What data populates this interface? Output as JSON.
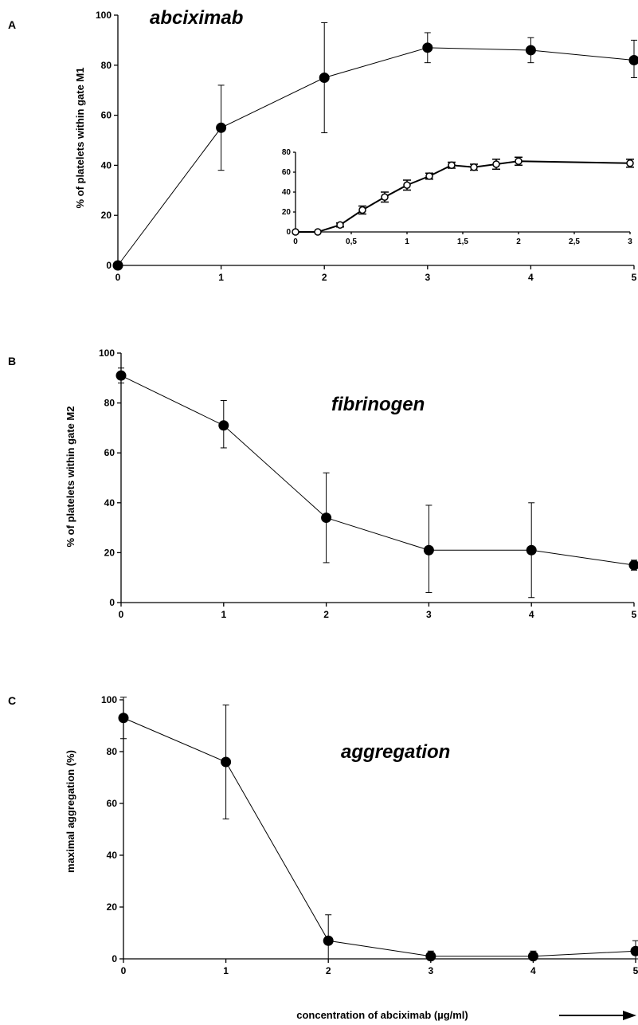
{
  "chart_data": [
    {
      "panel": "A",
      "type": "line",
      "title": "abciximab",
      "ylabel": "% of platelets within gate M1",
      "xlabel": "",
      "xlim": [
        0,
        5
      ],
      "ylim": [
        0,
        100
      ],
      "x_ticks": [
        "0",
        "1",
        "2",
        "3",
        "4",
        "5"
      ],
      "y_ticks": [
        "0",
        "20",
        "40",
        "60",
        "80",
        "100"
      ],
      "marker": "filled-circle",
      "x": [
        0,
        1,
        2,
        3,
        4,
        5
      ],
      "series": [
        {
          "values": [
            0,
            55,
            75,
            87,
            86,
            82
          ],
          "error_low": [
            0,
            38,
            53,
            81,
            81,
            75
          ],
          "error_high": [
            0,
            72,
            97,
            93,
            91,
            90
          ]
        }
      ],
      "inset": {
        "type": "line",
        "xlim": [
          0,
          3
        ],
        "ylim": [
          0,
          80
        ],
        "x_ticks": [
          "0",
          "0,5",
          "1",
          "1,5",
          "2",
          "2,5",
          "3"
        ],
        "y_ticks": [
          "0",
          "20",
          "40",
          "60",
          "80"
        ],
        "marker": "open-circle",
        "x": [
          0,
          0.2,
          0.4,
          0.6,
          0.8,
          1.0,
          1.2,
          1.4,
          1.6,
          1.8,
          2.0,
          3.0
        ],
        "values": [
          0,
          0,
          7,
          22,
          35,
          47,
          56,
          67,
          65,
          68,
          71,
          69
        ],
        "error_low": [
          0,
          0,
          5,
          18,
          30,
          42,
          53,
          64,
          62,
          63,
          67,
          65
        ],
        "error_high": [
          0,
          0,
          9,
          26,
          40,
          52,
          59,
          70,
          68,
          73,
          75,
          73
        ]
      }
    },
    {
      "panel": "B",
      "type": "line",
      "title": "fibrinogen",
      "ylabel": "% of platelets within gate M2",
      "xlabel": "",
      "xlim": [
        0,
        5
      ],
      "ylim": [
        0,
        100
      ],
      "x_ticks": [
        "0",
        "1",
        "2",
        "3",
        "4",
        "5"
      ],
      "y_ticks": [
        "0",
        "20",
        "40",
        "60",
        "80",
        "100"
      ],
      "marker": "filled-circle",
      "x": [
        0,
        1,
        2,
        3,
        4,
        5
      ],
      "series": [
        {
          "values": [
            91,
            71,
            34,
            21,
            21,
            15
          ],
          "error_low": [
            88,
            62,
            16,
            4,
            2,
            13
          ],
          "error_high": [
            94,
            81,
            52,
            39,
            40,
            17
          ]
        }
      ]
    },
    {
      "panel": "C",
      "type": "line",
      "title": "aggregation",
      "ylabel": "maximal aggregation (%)",
      "xlabel": "",
      "xlim": [
        0,
        5
      ],
      "ylim": [
        0,
        100
      ],
      "x_ticks": [
        "0",
        "1",
        "2",
        "3",
        "4",
        "5"
      ],
      "y_ticks": [
        "0",
        "20",
        "40",
        "60",
        "80",
        "100"
      ],
      "marker": "filled-circle",
      "x": [
        0,
        1,
        2,
        3,
        4,
        5
      ],
      "series": [
        {
          "values": [
            93,
            76,
            7,
            1,
            1,
            3
          ],
          "error_low": [
            85,
            54,
            0,
            0,
            0,
            0
          ],
          "error_high": [
            101,
            98,
            17,
            3,
            3,
            7
          ]
        }
      ]
    }
  ],
  "figure": {
    "xlabel": "concentration of abciximab (µg/ml)",
    "arrow": "right-arrow"
  }
}
